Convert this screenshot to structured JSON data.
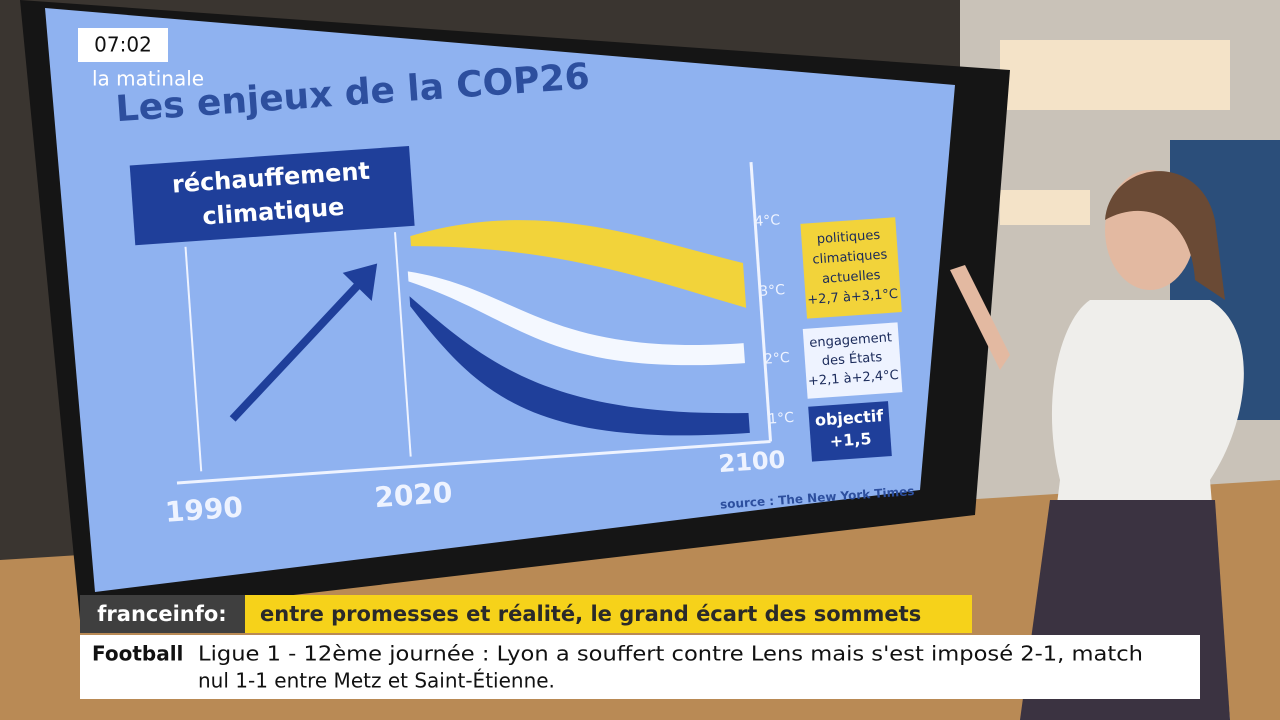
{
  "clock": {
    "time": "07:02",
    "show": "la matinale"
  },
  "screen": {
    "title": "Les enjeux de la COP26",
    "badge": [
      "réchauffement",
      "climatique"
    ],
    "years": [
      "1990",
      "2020",
      "2100"
    ],
    "scale": [
      "4°C",
      "3°C",
      "2°C",
      "1°C"
    ],
    "labels": [
      {
        "lines": [
          "politiques",
          "climatiques",
          "actuelles",
          "+2,7 à+3,1°C"
        ]
      },
      {
        "lines": [
          "engagement",
          "des États",
          "+2,1 à+2,4°C"
        ]
      },
      {
        "lines": [
          "objectif",
          "+1,5"
        ]
      }
    ],
    "source": "source : The New York Times"
  },
  "banner": {
    "brand": "franceinfo:",
    "headline": "entre promesses et réalité, le grand écart des sommets"
  },
  "ticker": {
    "topic": "Football",
    "lines": [
      "Ligue 1 - 12ème journée : Lyon a souffert contre Lens mais s'est imposé 2-1, match",
      "nul 1-1 entre Metz et Saint-Étienne."
    ]
  }
}
